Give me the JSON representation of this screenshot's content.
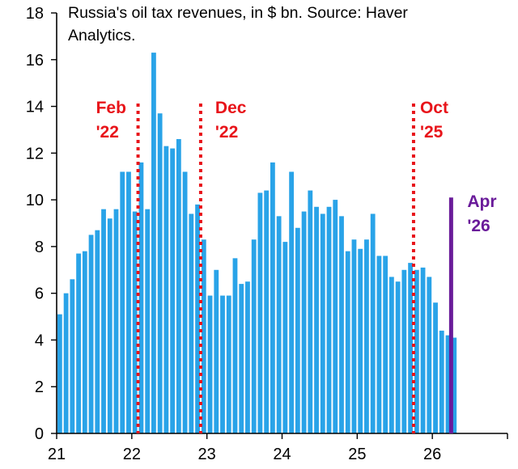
{
  "chart_data": {
    "type": "bar",
    "title_lines": [
      "Russia's oil tax revenues, in $ bn. Source: Haver",
      "Analytics."
    ],
    "xlabel": "",
    "ylabel": "",
    "ylim": [
      0,
      18
    ],
    "yticks": [
      0,
      2,
      4,
      6,
      8,
      10,
      12,
      14,
      16,
      18
    ],
    "xlim": [
      21,
      27
    ],
    "xticks": [
      {
        "value": 21,
        "label": "21"
      },
      {
        "value": 22,
        "label": "22"
      },
      {
        "value": 23,
        "label": "23"
      },
      {
        "value": 24,
        "label": "24"
      },
      {
        "value": 25,
        "label": "25"
      },
      {
        "value": 26,
        "label": "26"
      }
    ],
    "bar_color": "#29a3e8",
    "series": [
      {
        "start": "2021-01",
        "values": [
          5.1,
          6.0,
          6.6,
          7.7,
          7.8,
          8.5,
          8.7,
          9.6,
          9.2,
          9.6,
          11.2,
          11.2,
          9.5,
          11.6,
          9.6,
          16.3,
          13.7,
          12.3,
          12.2,
          12.6,
          11.2,
          9.4,
          9.8,
          8.3,
          5.9,
          7.0,
          5.9,
          5.9,
          7.5,
          6.4,
          6.5,
          8.3,
          10.3,
          10.4,
          11.6,
          9.3,
          8.2,
          11.2,
          8.8,
          9.5,
          10.4,
          9.7,
          9.4,
          9.7,
          10.0,
          9.3,
          7.8,
          8.3,
          7.9,
          8.3,
          9.4,
          7.6,
          7.6,
          6.7,
          6.5,
          7.0,
          7.3,
          7.0,
          7.1,
          6.7,
          5.6,
          4.4,
          4.2,
          4.1
        ]
      }
    ],
    "annotations": [
      {
        "label_lines": [
          "Feb",
          "'22"
        ],
        "x": "2022-02",
        "style": "dotted",
        "color": "#e8141a"
      },
      {
        "label_lines": [
          "Dec",
          "'22"
        ],
        "x": "2022-12",
        "style": "dotted",
        "color": "#e8141a"
      },
      {
        "label_lines": [
          "Oct",
          "'25"
        ],
        "x": "2025-10",
        "style": "dotted",
        "color": "#e8141a"
      },
      {
        "label_lines": [
          "Apr",
          "'26"
        ],
        "x": "2026-04",
        "y": 10.1,
        "style": "solid",
        "color": "#6a1b9a"
      }
    ]
  }
}
